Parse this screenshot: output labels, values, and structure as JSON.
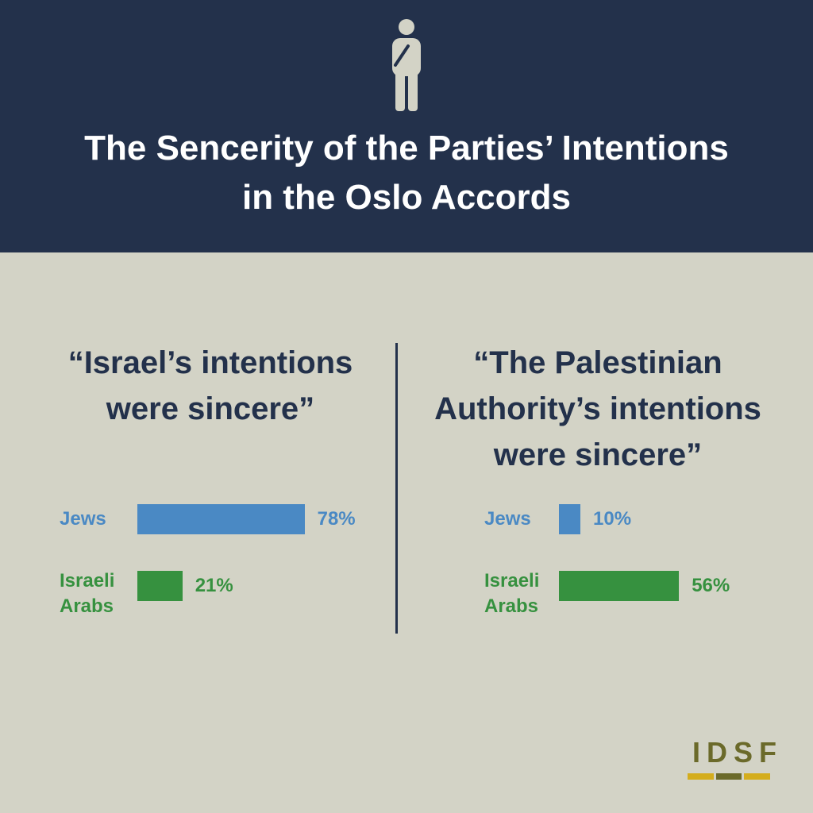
{
  "header": {
    "title_line1": "The Sencerity of the Parties’ Intentions",
    "title_line2": "in the Oslo Accords",
    "icon": "person-thinking-icon"
  },
  "colors": {
    "header_bg": "#23314b",
    "page_bg": "#d3d3c6",
    "jews": "#4a89c4",
    "israeli_arabs": "#36913f",
    "logo_text": "#6b6a2a",
    "logo_gold": "#d4ad1d"
  },
  "chart_data": [
    {
      "type": "bar",
      "orientation": "horizontal",
      "title_lines": [
        "“Israel’s intentions",
        "were sincere”"
      ],
      "categories": [
        {
          "label_lines": [
            "Jews"
          ],
          "value": 78,
          "value_label": "78%",
          "color": "#4a89c4"
        },
        {
          "label_lines": [
            "Israeli",
            "Arabs"
          ],
          "value": 21,
          "value_label": "21%",
          "color": "#36913f"
        }
      ],
      "unit": "%",
      "xlim": [
        0,
        100
      ],
      "grid": false
    },
    {
      "type": "bar",
      "orientation": "horizontal",
      "title_lines": [
        "“The Palestinian",
        "Authority’s intentions",
        "were sincere”"
      ],
      "categories": [
        {
          "label_lines": [
            "Jews"
          ],
          "value": 10,
          "value_label": "10%",
          "color": "#4a89c4"
        },
        {
          "label_lines": [
            "Israeli",
            "Arabs"
          ],
          "value": 56,
          "value_label": "56%",
          "color": "#36913f"
        }
      ],
      "unit": "%",
      "xlim": [
        0,
        100
      ],
      "grid": false
    }
  ],
  "logo": {
    "text": "IDSF"
  }
}
